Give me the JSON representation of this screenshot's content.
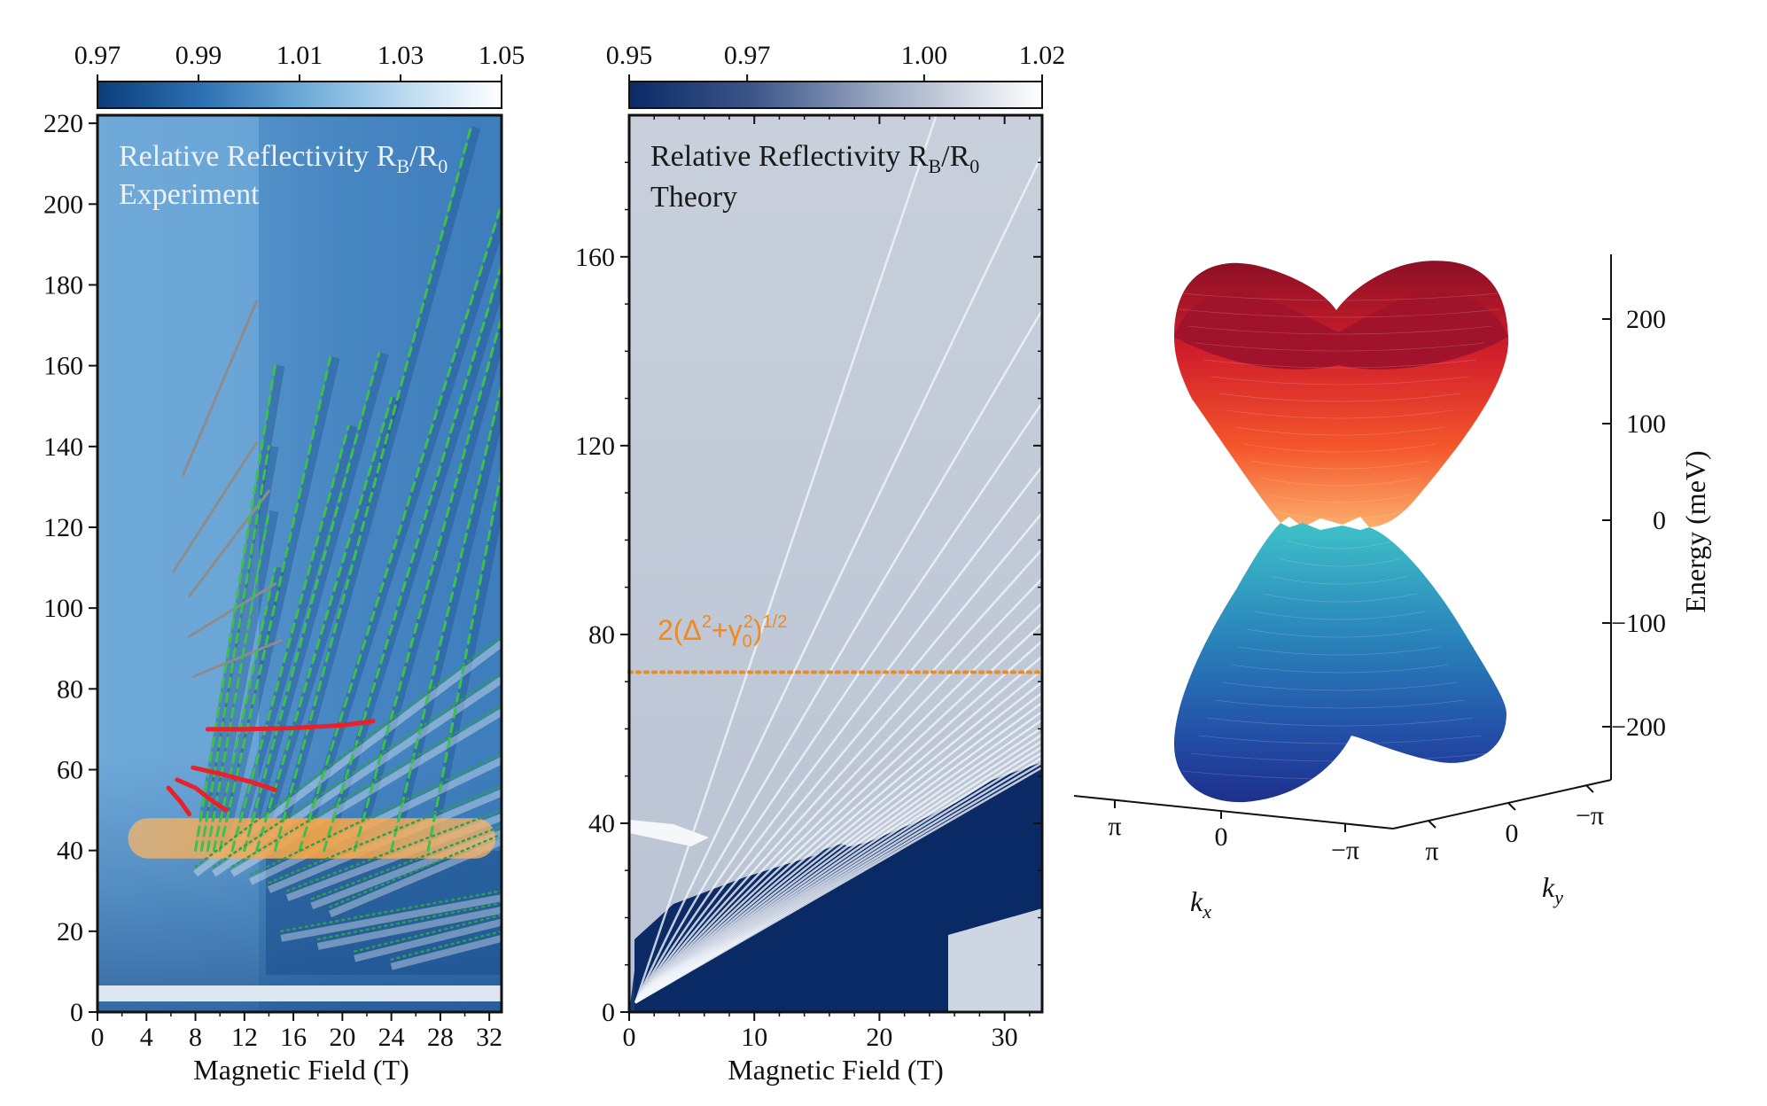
{
  "chart_data": [
    {
      "type": "heatmap",
      "panel": "experiment",
      "title_line1": "Relative Reflectivity R",
      "title_sub_B": "B",
      "title_slash": "/R",
      "title_sub_0": "0",
      "title_line2": "Experiment",
      "xlabel": "Magnetic Field (T)",
      "xlim": [
        0,
        33
      ],
      "ylim": [
        0,
        222
      ],
      "xticks": [
        "0",
        "4",
        "8",
        "12",
        "16",
        "20",
        "24",
        "28",
        "32"
      ],
      "yticks": [
        "0",
        "20",
        "40",
        "60",
        "80",
        "100",
        "120",
        "140",
        "160",
        "180",
        "200",
        "220"
      ],
      "colorbar": {
        "ticks": [
          "0.97",
          "0.99",
          "1.01",
          "1.03",
          "1.05"
        ],
        "range": [
          0.97,
          1.05
        ],
        "low_color": "#0b3d7a",
        "high_color": "#ffffff"
      },
      "gray_lines": [
        {
          "x": [
            7.0,
            13.0
          ],
          "y": [
            133,
            176
          ]
        },
        {
          "x": [
            6.2,
            13.0
          ],
          "y": [
            109,
            141
          ]
        },
        {
          "x": [
            7.5,
            14.0
          ],
          "y": [
            103,
            129
          ]
        },
        {
          "x": [
            7.5,
            14.5
          ],
          "y": [
            93,
            106
          ]
        },
        {
          "x": [
            7.8,
            15.0
          ],
          "y": [
            83,
            92
          ]
        }
      ],
      "red_lines": [
        {
          "x": [
            9.0,
            12.0,
            16.0,
            20.0,
            22.5
          ],
          "y": [
            70,
            70,
            70.3,
            71,
            72
          ]
        },
        {
          "x": [
            7.8,
            10.0,
            12.5,
            14.5
          ],
          "y": [
            60.5,
            59,
            57,
            55
          ]
        },
        {
          "x": [
            6.5,
            8.0,
            9.5,
            10.5
          ],
          "y": [
            57.5,
            55.5,
            52,
            50
          ]
        },
        {
          "x": [
            5.8,
            6.8,
            7.5
          ],
          "y": [
            55.5,
            52,
            49
          ]
        }
      ],
      "green_dashed_lines": [
        {
          "x": [
            8.0,
            14.5
          ],
          "y": [
            40,
            160
          ]
        },
        {
          "x": [
            8.5,
            14.0
          ],
          "y": [
            40,
            140
          ]
        },
        {
          "x": [
            9.0,
            14.0
          ],
          "y": [
            40,
            124
          ]
        },
        {
          "x": [
            9.5,
            14.5
          ],
          "y": [
            40,
            110
          ]
        },
        {
          "x": [
            10.0,
            19.0
          ],
          "y": [
            40,
            162
          ]
        },
        {
          "x": [
            11.0,
            20.5
          ],
          "y": [
            40,
            145
          ]
        },
        {
          "x": [
            12.0,
            23.0
          ],
          "y": [
            40,
            163
          ]
        },
        {
          "x": [
            13.0,
            24.0
          ],
          "y": [
            40,
            152
          ]
        },
        {
          "x": [
            14.5,
            30.5
          ],
          "y": [
            40,
            219
          ]
        },
        {
          "x": [
            16.5,
            33.0
          ],
          "y": [
            40,
            200
          ]
        },
        {
          "x": [
            18.5,
            33.0
          ],
          "y": [
            40,
            185
          ]
        },
        {
          "x": [
            21.0,
            33.0
          ],
          "y": [
            40,
            172
          ]
        },
        {
          "x": [
            24.0,
            33.0
          ],
          "y": [
            40,
            155
          ]
        },
        {
          "x": [
            27.0,
            33.0
          ],
          "y": [
            40,
            134
          ]
        }
      ],
      "green_dotted_lines": [
        {
          "x": [
            8.0,
            33.0
          ],
          "y": [
            36,
            93
          ]
        },
        {
          "x": [
            9.5,
            33.0
          ],
          "y": [
            36,
            84
          ]
        },
        {
          "x": [
            11.0,
            33.0
          ],
          "y": [
            36,
            76
          ]
        },
        {
          "x": [
            12.5,
            33.0
          ],
          "y": [
            34,
            64
          ]
        },
        {
          "x": [
            14.0,
            33.0
          ],
          "y": [
            32,
            56
          ]
        },
        {
          "x": [
            15.5,
            33.0
          ],
          "y": [
            30,
            50
          ]
        },
        {
          "x": [
            17.5,
            33.0
          ],
          "y": [
            28,
            46
          ]
        },
        {
          "x": [
            19.0,
            33.0
          ],
          "y": [
            26,
            44
          ]
        },
        {
          "x": [
            15.0,
            33.0
          ],
          "y": [
            20,
            30
          ]
        },
        {
          "x": [
            18.0,
            33.0
          ],
          "y": [
            18,
            27
          ]
        },
        {
          "x": [
            21.0,
            33.0
          ],
          "y": [
            15,
            24
          ]
        },
        {
          "x": [
            24.0,
            33.0
          ],
          "y": [
            13,
            20
          ]
        }
      ],
      "orange_band": {
        "x": [
          2.5,
          32.5
        ],
        "y": 43,
        "height": 10,
        "color": "#f5a74c"
      }
    },
    {
      "type": "heatmap",
      "panel": "theory",
      "title_line1": "Relative Reflectivity R",
      "title_sub_B": "B",
      "title_slash": "/R",
      "title_sub_0": "0",
      "title_line2": "Theory",
      "xlabel": "Magnetic Field (T)",
      "xlim": [
        0,
        33
      ],
      "ylim": [
        0,
        190
      ],
      "xticks": [
        "0",
        "10",
        "20",
        "30"
      ],
      "yticks": [
        "0",
        "40",
        "80",
        "120",
        "160"
      ],
      "colorbar": {
        "ticks": [
          "0.95",
          "0.97",
          "1.00",
          "1.02"
        ],
        "range": [
          0.95,
          1.02
        ],
        "low_color": "#0a2a66",
        "high_color": "#ffffff"
      },
      "threshold_line": {
        "y": 72,
        "label_main": "2(Δ",
        "label_sup1": "2",
        "label_plus": "+γ",
        "label_sub": "0",
        "label_sup2": "2",
        "label_close": ")",
        "label_exp": "1/2",
        "color": "#f08a1c"
      }
    },
    {
      "type": "surface3d",
      "panel": "band-structure",
      "zlabel": "Energy (meV)",
      "zticks": [
        "200",
        "100",
        "0",
        "−100",
        "−200"
      ],
      "kx_label": "k",
      "kx_sub": "x",
      "ky_label": "k",
      "ky_sub": "y",
      "kx_ticks": [
        "π",
        "0",
        "−π"
      ],
      "ky_ticks": [
        "π",
        "0",
        "−π"
      ],
      "upper_band_colors": [
        "#8b0f24",
        "#d21f2b",
        "#f4562b",
        "#fcae6b"
      ],
      "lower_band_colors": [
        "#3ec1c8",
        "#2a86bb",
        "#2350a8",
        "#1d2f8c"
      ]
    }
  ]
}
